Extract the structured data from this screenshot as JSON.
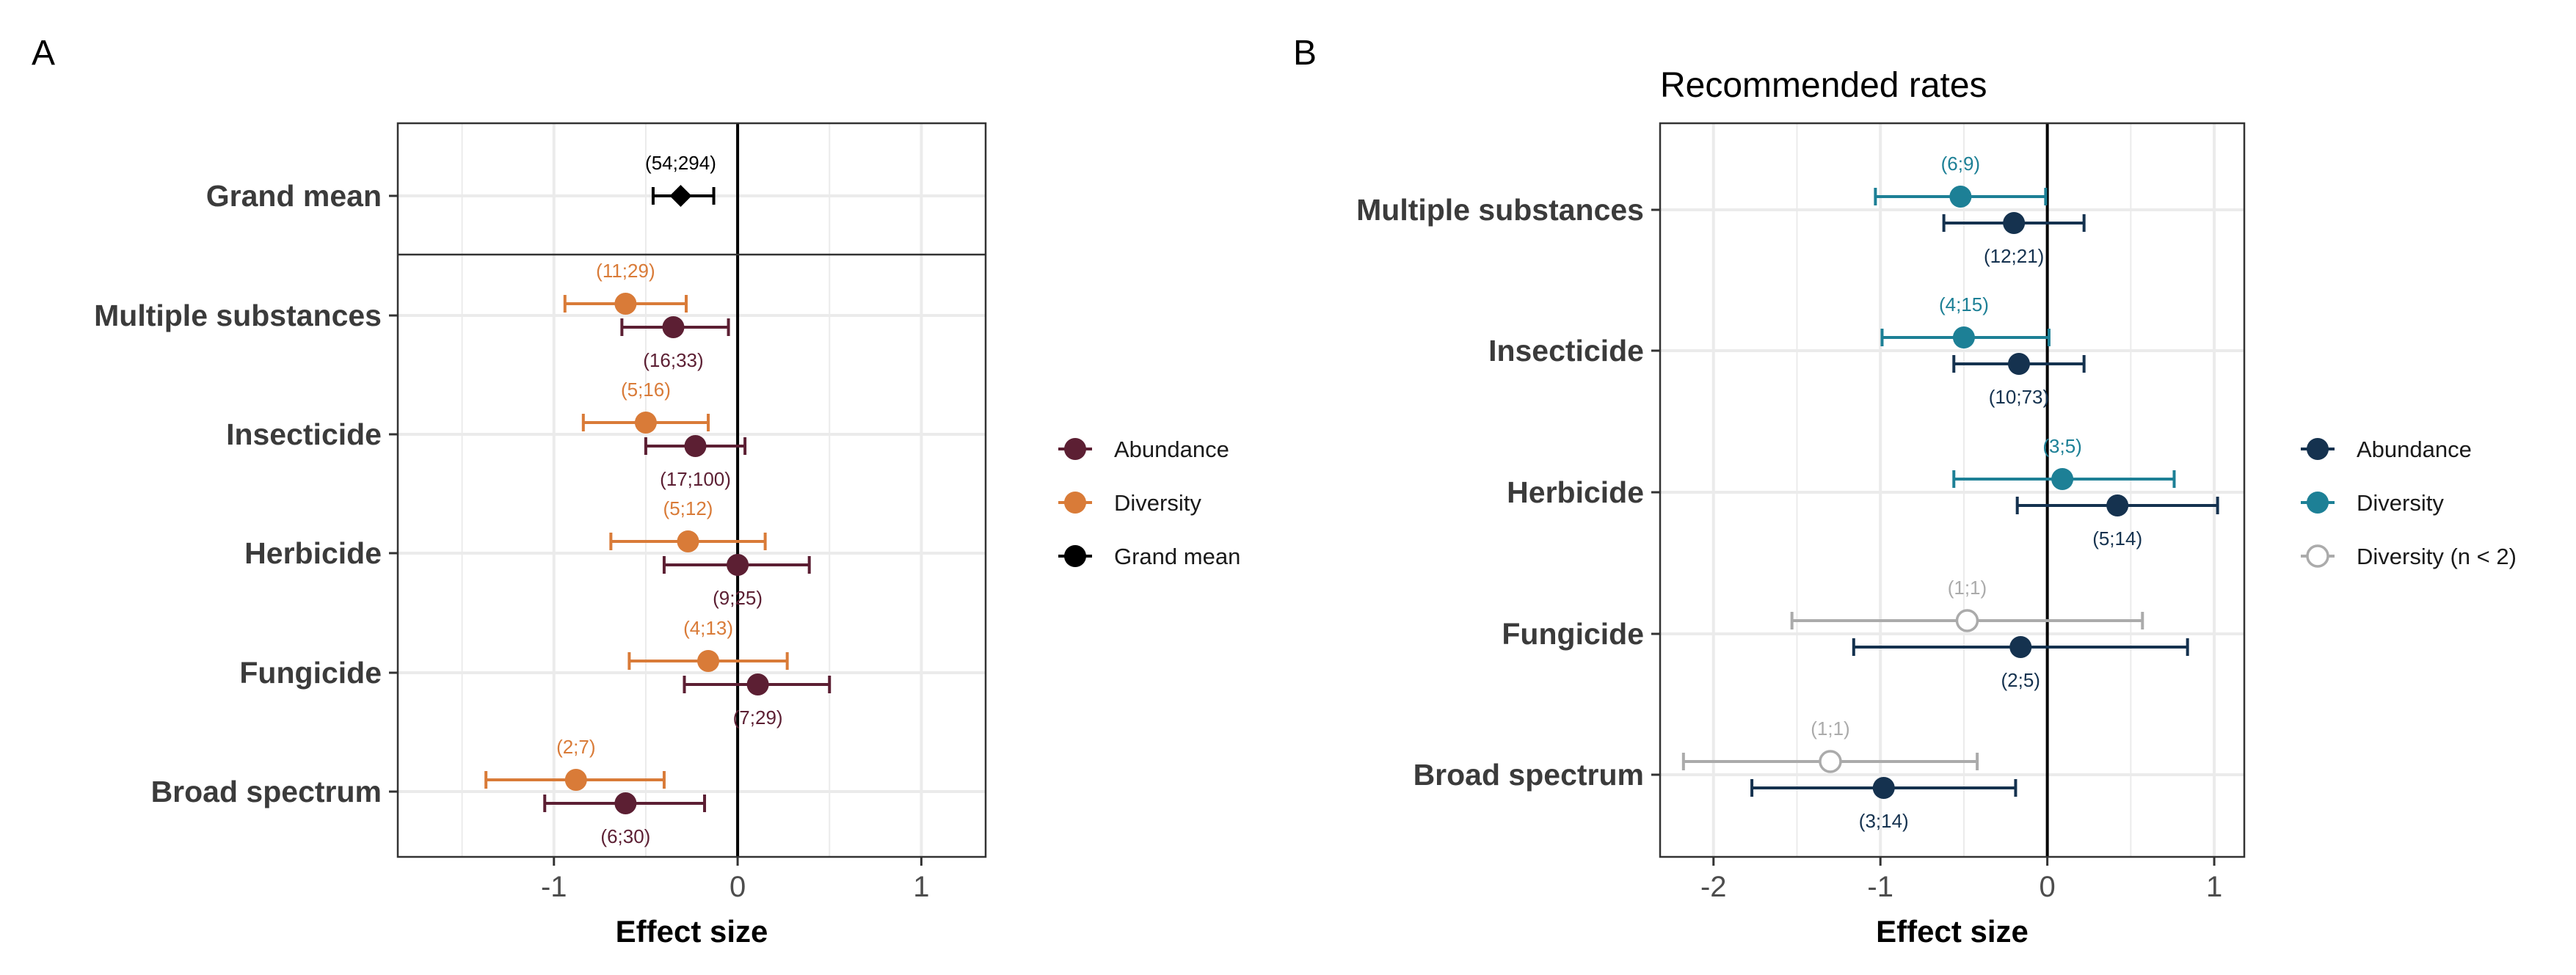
{
  "colors": {
    "abundance_A": "#5c1f33",
    "diversity_A": "#d97b38",
    "grand_mean": "#000000",
    "abundance_B": "#15324f",
    "diversity_B": "#1d8096",
    "diversity_low_n": "#ababab"
  },
  "chart_data": [
    {
      "type": "scatter",
      "variant": "forest plot (point estimates with confidence intervals)",
      "panel": "A",
      "title": "",
      "xlabel": "Effect size",
      "ylabel": "",
      "xlim": [
        -1.85,
        1.35
      ],
      "xticks": [
        -1,
        0,
        1
      ],
      "xtick_labels": [
        "-1",
        "0",
        "1"
      ],
      "grid": true,
      "legend_position": "right",
      "categories": [
        "Grand mean",
        "Multiple substances",
        "Insecticide",
        "Herbicide",
        "Fungicide",
        "Broad spectrum"
      ],
      "legend": [
        {
          "name": "Abundance",
          "color": "#5c1f33",
          "marker": "filled-circle"
        },
        {
          "name": "Diversity",
          "color": "#d97b38",
          "marker": "filled-circle"
        },
        {
          "name": "Grand mean",
          "color": "#000000",
          "marker": "filled-circle"
        }
      ],
      "series": [
        {
          "name": "Grand mean",
          "color": "#000000",
          "marker": "diamond",
          "points": [
            {
              "category": "Grand mean",
              "estimate": -0.31,
              "ci_low": -0.46,
              "ci_high": -0.13,
              "label": "(54;294)"
            }
          ]
        },
        {
          "name": "Diversity",
          "color": "#d97b38",
          "marker": "filled-circle",
          "points": [
            {
              "category": "Multiple substances",
              "estimate": -0.61,
              "ci_low": -0.94,
              "ci_high": -0.28,
              "label": "(11;29)"
            },
            {
              "category": "Insecticide",
              "estimate": -0.5,
              "ci_low": -0.84,
              "ci_high": -0.16,
              "label": "(5;16)"
            },
            {
              "category": "Herbicide",
              "estimate": -0.27,
              "ci_low": -0.69,
              "ci_high": 0.15,
              "label": "(5;12)"
            },
            {
              "category": "Fungicide",
              "estimate": -0.16,
              "ci_low": -0.59,
              "ci_high": 0.27,
              "label": "(4;13)"
            },
            {
              "category": "Broad spectrum",
              "estimate": -0.88,
              "ci_low": -1.37,
              "ci_high": -0.4,
              "label": "(2;7)"
            }
          ]
        },
        {
          "name": "Abundance",
          "color": "#5c1f33",
          "marker": "filled-circle",
          "points": [
            {
              "category": "Multiple substances",
              "estimate": -0.35,
              "ci_low": -0.63,
              "ci_high": -0.05,
              "label": "(16;33)"
            },
            {
              "category": "Insecticide",
              "estimate": -0.23,
              "ci_low": -0.5,
              "ci_high": 0.04,
              "label": "(17;100)"
            },
            {
              "category": "Herbicide",
              "estimate": 0.0,
              "ci_low": -0.4,
              "ci_high": 0.39,
              "label": "(9;25)"
            },
            {
              "category": "Fungicide",
              "estimate": 0.11,
              "ci_low": -0.29,
              "ci_high": 0.5,
              "label": "(7;29)"
            },
            {
              "category": "Broad spectrum",
              "estimate": -0.61,
              "ci_low": -1.05,
              "ci_high": -0.18,
              "label": "(6;30)"
            }
          ]
        }
      ]
    },
    {
      "type": "scatter",
      "variant": "forest plot (point estimates with confidence intervals)",
      "panel": "B",
      "title": "Recommended rates",
      "xlabel": "Effect size",
      "ylabel": "",
      "xlim": [
        -2.32,
        1.18
      ],
      "xticks": [
        -2,
        -1,
        0,
        1
      ],
      "xtick_labels": [
        "-2",
        "-1",
        "0",
        "1"
      ],
      "grid": true,
      "legend_position": "right",
      "categories": [
        "Multiple substances",
        "Insecticide",
        "Herbicide",
        "Fungicide",
        "Broad spectrum"
      ],
      "legend": [
        {
          "name": "Abundance",
          "color": "#15324f",
          "marker": "filled-circle"
        },
        {
          "name": "Diversity",
          "color": "#1d8096",
          "marker": "filled-circle"
        },
        {
          "name": "Diversity (n < 2)",
          "color": "#ababab",
          "marker": "open-circle"
        }
      ],
      "series": [
        {
          "name": "Diversity",
          "color": "#1d8096",
          "marker": "filled-circle",
          "points": [
            {
              "category": "Multiple substances",
              "estimate": -0.52,
              "ci_low": -1.03,
              "ci_high": -0.01,
              "label": "(6;9)"
            },
            {
              "category": "Insecticide",
              "estimate": -0.5,
              "ci_low": -0.99,
              "ci_high": 0.01,
              "label": "(4;15)"
            },
            {
              "category": "Herbicide",
              "estimate": 0.09,
              "ci_low": -0.56,
              "ci_high": 0.76,
              "label": "(3;5)"
            }
          ]
        },
        {
          "name": "Diversity (n < 2)",
          "color": "#ababab",
          "marker": "open-circle",
          "points": [
            {
              "category": "Fungicide",
              "estimate": -0.48,
              "ci_low": -1.53,
              "ci_high": 0.57,
              "label": "(1;1)"
            },
            {
              "category": "Broad spectrum",
              "estimate": -1.3,
              "ci_low": -2.18,
              "ci_high": -0.42,
              "label": "(1;1)"
            }
          ]
        },
        {
          "name": "Abundance",
          "color": "#15324f",
          "marker": "filled-circle",
          "points": [
            {
              "category": "Multiple substances",
              "estimate": -0.2,
              "ci_low": -0.62,
              "ci_high": 0.22,
              "label": "(12;21)"
            },
            {
              "category": "Insecticide",
              "estimate": -0.17,
              "ci_low": -0.56,
              "ci_high": 0.22,
              "label": "(10;73)"
            },
            {
              "category": "Herbicide",
              "estimate": 0.42,
              "ci_low": -0.18,
              "ci_high": 1.02,
              "label": "(5;14)"
            },
            {
              "category": "Fungicide",
              "estimate": -0.16,
              "ci_low": -1.16,
              "ci_high": 0.84,
              "label": "(2;5)"
            },
            {
              "category": "Broad spectrum",
              "estimate": -0.98,
              "ci_low": -1.77,
              "ci_high": -0.19,
              "label": "(3;14)"
            }
          ]
        }
      ]
    }
  ],
  "panels": {
    "a": {
      "tag": "A"
    },
    "b": {
      "tag": "B"
    }
  }
}
